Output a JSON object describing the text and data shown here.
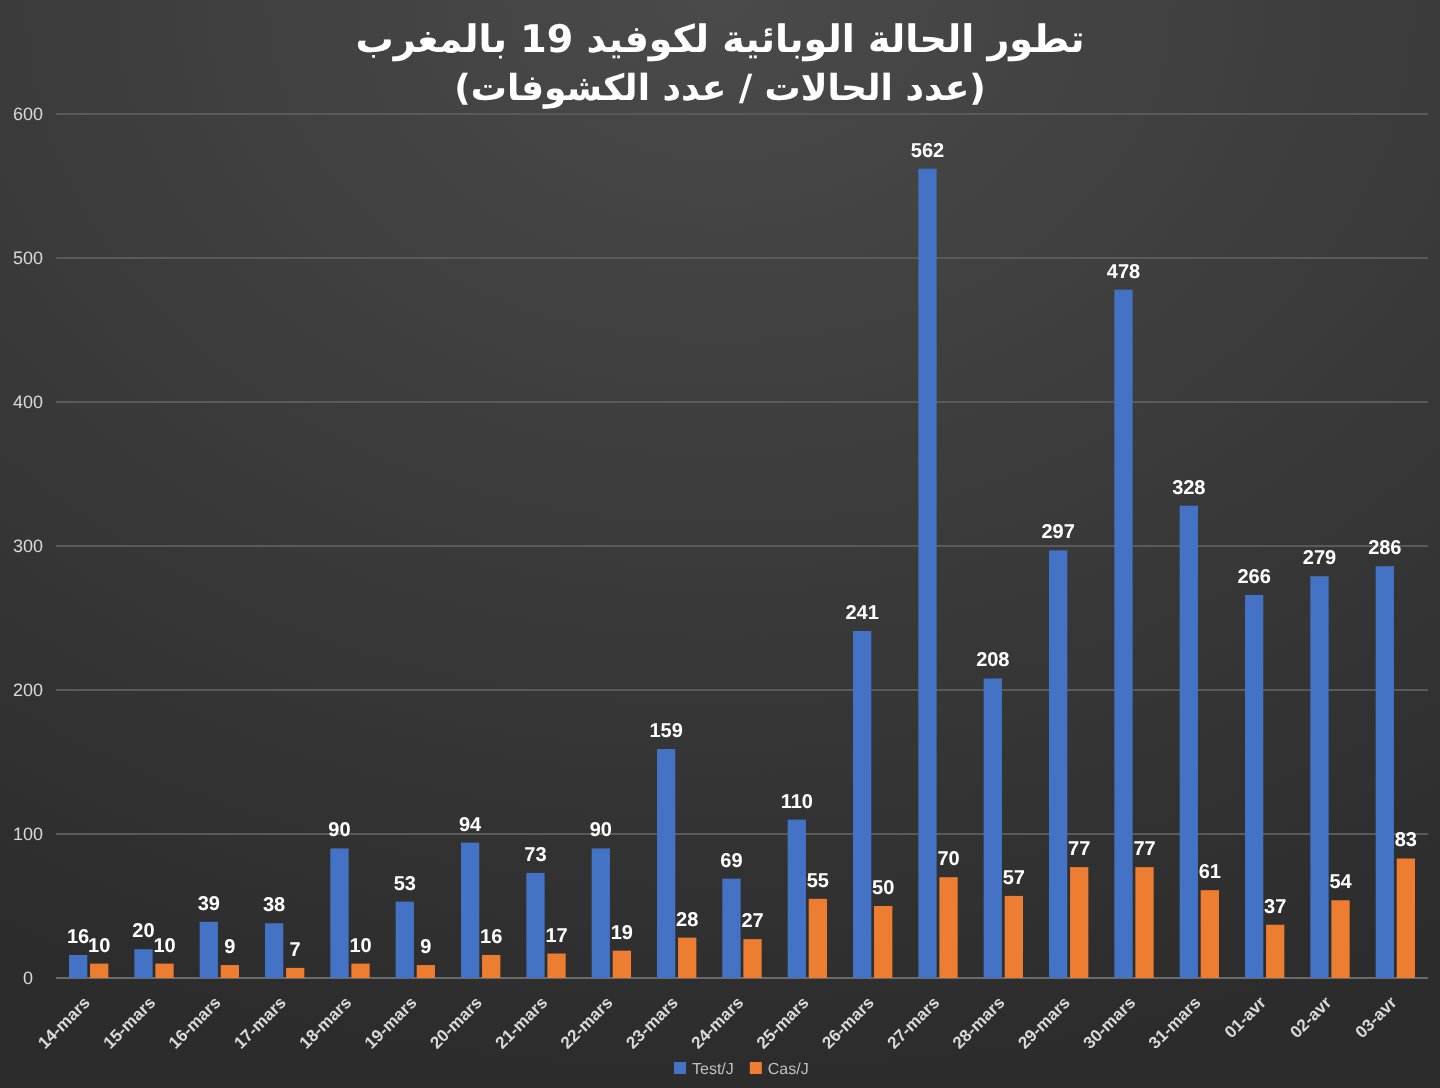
{
  "chart_data": {
    "type": "bar",
    "title": "تطور الحالة الوبائية لكوفيد 19 بالمغرب",
    "subtitle": "(عدد  الحالات / عدد الكشوفات)",
    "categories": [
      "14-mars",
      "15-mars",
      "16-mars",
      "17-mars",
      "18-mars",
      "19-mars",
      "20-mars",
      "21-mars",
      "22-mars",
      "23-mars",
      "24-mars",
      "25-mars",
      "26-mars",
      "27-mars",
      "28-mars",
      "29-mars",
      "30-mars",
      "31-mars",
      "01-avr",
      "02-avr",
      "03-avr"
    ],
    "series": [
      {
        "name": "Test/J",
        "color": "#4472c4",
        "values": [
          16,
          20,
          39,
          38,
          90,
          53,
          94,
          73,
          90,
          159,
          69,
          110,
          241,
          562,
          208,
          297,
          478,
          328,
          266,
          279,
          286
        ]
      },
      {
        "name": "Cas/J",
        "color": "#ed7d31",
        "values": [
          10,
          10,
          9,
          7,
          10,
          9,
          16,
          17,
          19,
          28,
          27,
          55,
          50,
          70,
          57,
          77,
          77,
          61,
          37,
          54,
          83
        ]
      }
    ],
    "ylim": [
      0,
      600
    ],
    "yticks": [
      0,
      100,
      200,
      300,
      400,
      500,
      600
    ],
    "grid": "y",
    "legend": "bottom",
    "data_labels": true
  }
}
